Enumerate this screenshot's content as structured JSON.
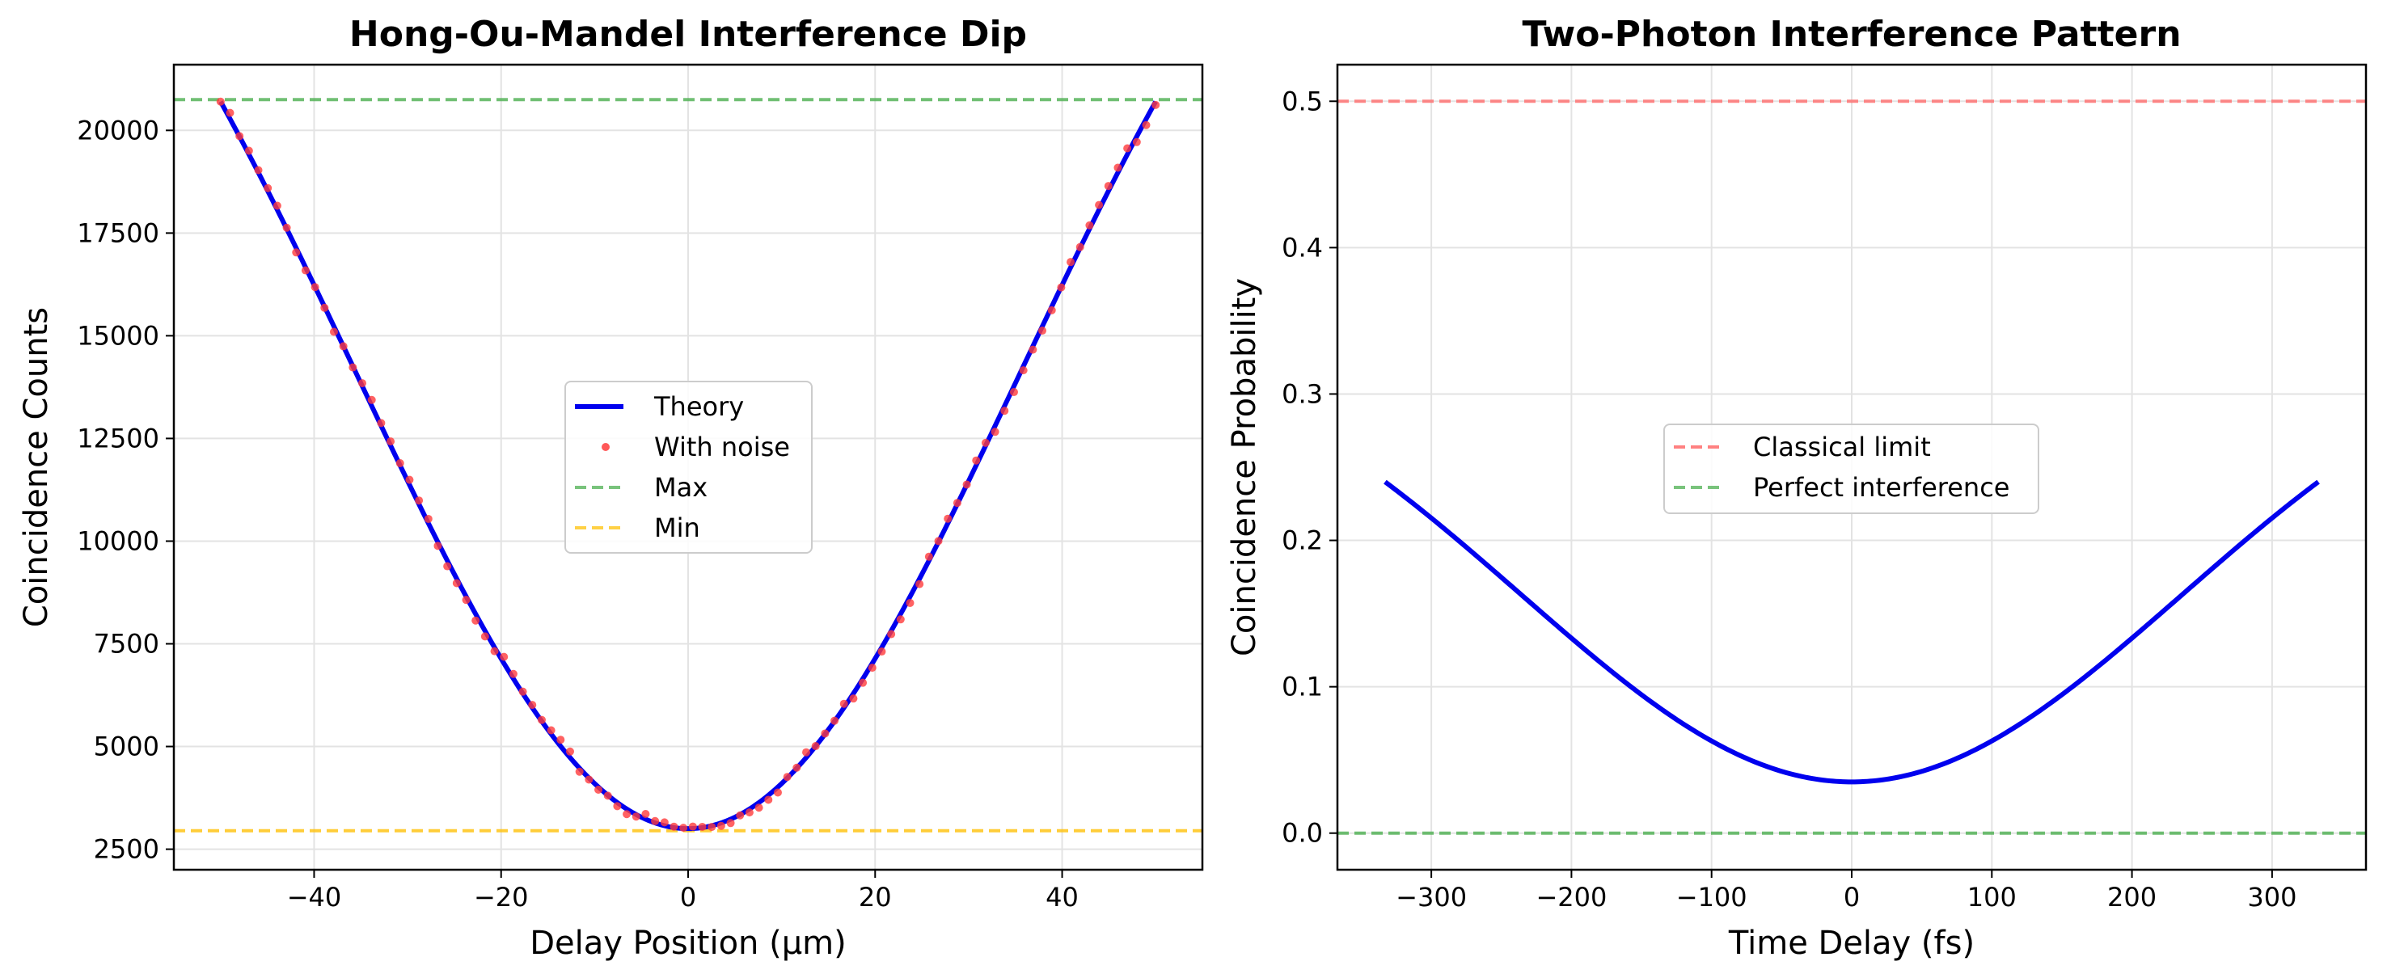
{
  "chart_data": [
    {
      "type": "line",
      "title": "Hong-Ou-Mandel Interference Dip",
      "xlabel": "Delay Position (μm)",
      "ylabel": "Coincidence Counts",
      "xlim": [
        -55,
        55
      ],
      "ylim": [
        2000,
        21600
      ],
      "xticks": [
        -40,
        -20,
        0,
        20,
        40
      ],
      "xtick_labels": [
        "−40",
        "−20",
        "0",
        "20",
        "40"
      ],
      "yticks": [
        2500,
        5000,
        7500,
        10000,
        12500,
        15000,
        17500,
        20000
      ],
      "ytick_labels": [
        "2500",
        "5000",
        "7500",
        "10000",
        "12500",
        "15000",
        "17500",
        "20000"
      ],
      "grid": true,
      "legend_position": "center",
      "model": {
        "min": 3000,
        "max": 20700,
        "x_range": [
          -50,
          50
        ]
      },
      "hlines": [
        {
          "name": "Max",
          "y": 20750,
          "color": "#4caf50",
          "style": "dashed"
        },
        {
          "name": "Min",
          "y": 2950,
          "color": "#ffc107",
          "style": "dashed"
        }
      ],
      "series": [
        {
          "name": "Theory",
          "color": "#0000ee",
          "style": "solid"
        },
        {
          "name": "With noise",
          "color": "#ff3b3b",
          "style": "markers",
          "n_points": 100
        }
      ],
      "legend": [
        "Theory",
        "With noise",
        "Max",
        "Min"
      ]
    },
    {
      "type": "line",
      "title": "Two-Photon Interference Pattern",
      "xlabel": "Time Delay (fs)",
      "ylabel": "Coincidence Probability",
      "xlim": [
        -367,
        367
      ],
      "ylim": [
        -0.025,
        0.525
      ],
      "xticks": [
        -300,
        -200,
        -100,
        0,
        100,
        200,
        300
      ],
      "xtick_labels": [
        "−300",
        "−200",
        "−100",
        "0",
        "100",
        "200",
        "300"
      ],
      "yticks": [
        0.0,
        0.1,
        0.2,
        0.3,
        0.4,
        0.5
      ],
      "ytick_labels": [
        "0.0",
        "0.1",
        "0.2",
        "0.3",
        "0.4",
        "0.5"
      ],
      "grid": true,
      "legend_position": "center",
      "model": {
        "min": 0.035,
        "edge_value": 0.24,
        "x_range": [
          -333,
          333
        ]
      },
      "hlines": [
        {
          "name": "Classical limit",
          "y": 0.5,
          "color": "#ff6b6b",
          "style": "dashed"
        },
        {
          "name": "Perfect interference",
          "y": 0.0,
          "color": "#4caf50",
          "style": "dashed"
        }
      ],
      "series": [
        {
          "name": "Coincidence probability",
          "color": "#0000ee",
          "style": "solid"
        }
      ],
      "legend": [
        "Classical limit",
        "Perfect interference"
      ]
    }
  ]
}
